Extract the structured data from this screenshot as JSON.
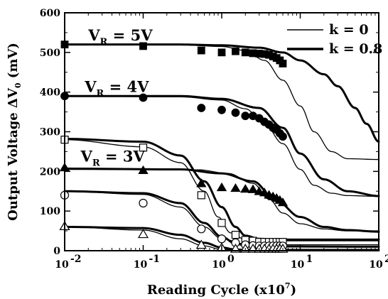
{
  "chart_data": {
    "type": "scatter",
    "title": "",
    "xlabel": "Reading Cycle (x10",
    "xlabel_sup": "7",
    "xlabel_suffix": ")",
    "ylabel": "Output Voltage ΔV",
    "ylabel_sub": "0",
    "ylabel_suffix": " (mV)",
    "xscale": "log",
    "xlim": [
      0.01,
      100
    ],
    "ylim": [
      0,
      600
    ],
    "x_ticks": [
      {
        "base": "10",
        "exp": "-2"
      },
      {
        "base": "10",
        "exp": "-1"
      },
      {
        "base": "10",
        "exp": "0"
      },
      {
        "base": "10",
        "exp": "1"
      },
      {
        "base": "10",
        "exp": "2"
      }
    ],
    "y_ticks": [
      "0",
      "100",
      "200",
      "300",
      "400",
      "500",
      "600"
    ],
    "grid": false,
    "legend": {
      "position": "top-right",
      "entries": [
        {
          "label": "k = 0",
          "line": "thin"
        },
        {
          "label": "k = 0.8",
          "line": "thick"
        }
      ]
    },
    "annotations": [
      {
        "text_main": "V",
        "text_sub": "R",
        "text_rest": " = 5V",
        "x": 0.02,
        "y": 530
      },
      {
        "text_main": "V",
        "text_sub": "R",
        "text_rest": " = 4V",
        "x": 0.018,
        "y": 400
      },
      {
        "text_main": "V",
        "text_sub": "R",
        "text_rest": " = 3V",
        "x": 0.016,
        "y": 225
      }
    ],
    "series": [
      {
        "marker": "filled-square",
        "points": [
          [
            0.01,
            520
          ],
          [
            0.1,
            516
          ],
          [
            0.55,
            505
          ],
          [
            1.0,
            500
          ],
          [
            1.5,
            503
          ],
          [
            2.0,
            500
          ],
          [
            2.5,
            498
          ],
          [
            3.0,
            497
          ],
          [
            3.5,
            496
          ],
          [
            4.0,
            494
          ],
          [
            4.5,
            490
          ],
          [
            5.0,
            486
          ],
          [
            5.5,
            480
          ],
          [
            6.0,
            472
          ]
        ]
      },
      {
        "marker": "filled-circle",
        "points": [
          [
            0.01,
            390
          ],
          [
            0.1,
            386
          ],
          [
            0.55,
            360
          ],
          [
            1.0,
            355
          ],
          [
            1.5,
            348
          ],
          [
            2.0,
            340
          ],
          [
            2.5,
            340
          ],
          [
            3.0,
            334
          ],
          [
            3.5,
            325
          ],
          [
            4.0,
            318
          ],
          [
            4.5,
            310
          ],
          [
            5.0,
            305
          ],
          [
            5.5,
            296
          ],
          [
            6.0,
            288
          ]
        ]
      },
      {
        "marker": "filled-triangle",
        "points": [
          [
            0.01,
            210
          ],
          [
            0.1,
            203
          ],
          [
            0.55,
            170
          ],
          [
            1.0,
            160
          ],
          [
            1.5,
            158
          ],
          [
            2.0,
            156
          ],
          [
            2.5,
            155
          ],
          [
            3.0,
            150
          ],
          [
            3.5,
            147
          ],
          [
            4.0,
            141
          ],
          [
            4.5,
            137
          ],
          [
            5.0,
            133
          ],
          [
            5.5,
            128
          ],
          [
            6.0,
            122
          ]
        ]
      },
      {
        "marker": "open-square",
        "points": [
          [
            0.01,
            280
          ],
          [
            0.1,
            260
          ],
          [
            0.55,
            140
          ],
          [
            1.0,
            70
          ],
          [
            1.5,
            40
          ],
          [
            2.0,
            27
          ],
          [
            2.5,
            25
          ],
          [
            3.0,
            22
          ],
          [
            3.5,
            22
          ],
          [
            4.0,
            22
          ],
          [
            4.5,
            22
          ],
          [
            5.0,
            22
          ],
          [
            5.5,
            22
          ],
          [
            6.0,
            22
          ]
        ]
      },
      {
        "marker": "open-circle",
        "points": [
          [
            0.01,
            140
          ],
          [
            0.1,
            120
          ],
          [
            0.55,
            55
          ],
          [
            1.0,
            30
          ],
          [
            1.5,
            20
          ],
          [
            2.0,
            15
          ],
          [
            2.5,
            13
          ],
          [
            3.0,
            12
          ],
          [
            3.5,
            12
          ],
          [
            4.0,
            12
          ],
          [
            4.5,
            12
          ],
          [
            5.0,
            12
          ],
          [
            5.5,
            12
          ],
          [
            6.0,
            12
          ]
        ]
      },
      {
        "marker": "open-triangle",
        "points": [
          [
            0.01,
            62
          ],
          [
            0.1,
            42
          ],
          [
            0.55,
            15
          ],
          [
            1.0,
            8
          ],
          [
            1.5,
            5
          ],
          [
            2.0,
            5
          ],
          [
            2.5,
            5
          ],
          [
            3.0,
            5
          ],
          [
            3.5,
            5
          ],
          [
            4.0,
            5
          ],
          [
            4.5,
            5
          ],
          [
            5.0,
            5
          ],
          [
            5.5,
            5
          ],
          [
            6.0,
            5
          ]
        ]
      }
    ],
    "curves": [
      {
        "k": "0",
        "weight": "thin",
        "points": [
          [
            0.01,
            520
          ],
          [
            0.3,
            519
          ],
          [
            1,
            515
          ],
          [
            2,
            505
          ],
          [
            3.5,
            480
          ],
          [
            6,
            430
          ],
          [
            10,
            365
          ],
          [
            15,
            300
          ],
          [
            25,
            250
          ],
          [
            40,
            232
          ],
          [
            100,
            230
          ]
        ]
      },
      {
        "k": "0",
        "weight": "thin",
        "points": [
          [
            0.01,
            390
          ],
          [
            0.3,
            388
          ],
          [
            1,
            380
          ],
          [
            2,
            358
          ],
          [
            3.5,
            320
          ],
          [
            6,
            270
          ],
          [
            10,
            205
          ],
          [
            15,
            165
          ],
          [
            25,
            145
          ],
          [
            40,
            139
          ],
          [
            100,
            137
          ]
        ]
      },
      {
        "k": "0",
        "weight": "thin",
        "points": [
          [
            0.01,
            205
          ],
          [
            0.5,
            204
          ],
          [
            1.2,
            195
          ],
          [
            2.5,
            170
          ],
          [
            4,
            130
          ],
          [
            6,
            95
          ],
          [
            10,
            68
          ],
          [
            20,
            55
          ],
          [
            40,
            50
          ],
          [
            100,
            50
          ]
        ]
      },
      {
        "k": "0",
        "weight": "thin",
        "points": [
          [
            0.01,
            280
          ],
          [
            0.1,
            262
          ],
          [
            0.3,
            222
          ],
          [
            0.6,
            150
          ],
          [
            0.9,
            85
          ],
          [
            1.3,
            45
          ],
          [
            2,
            28
          ],
          [
            4,
            25
          ],
          [
            100,
            25
          ]
        ]
      },
      {
        "k": "0",
        "weight": "thin",
        "points": [
          [
            0.01,
            150
          ],
          [
            0.1,
            142
          ],
          [
            0.3,
            110
          ],
          [
            0.6,
            60
          ],
          [
            1,
            30
          ],
          [
            2,
            17
          ],
          [
            4,
            15
          ],
          [
            100,
            15
          ]
        ]
      },
      {
        "k": "0",
        "weight": "thin",
        "points": [
          [
            0.01,
            60
          ],
          [
            0.1,
            52
          ],
          [
            0.3,
            30
          ],
          [
            0.6,
            12
          ],
          [
            1,
            3
          ],
          [
            2,
            0
          ],
          [
            100,
            0
          ]
        ]
      },
      {
        "k": "0.8",
        "weight": "thick",
        "points": [
          [
            0.01,
            520
          ],
          [
            0.3,
            520
          ],
          [
            1,
            518
          ],
          [
            3,
            512
          ],
          [
            6,
            500
          ],
          [
            10,
            480
          ],
          [
            20,
            445
          ],
          [
            30,
            415
          ],
          [
            50,
            360
          ],
          [
            70,
            320
          ],
          [
            100,
            275
          ]
        ]
      },
      {
        "k": "0.8",
        "weight": "thick",
        "points": [
          [
            0.01,
            390
          ],
          [
            0.3,
            390
          ],
          [
            1,
            383
          ],
          [
            3,
            360
          ],
          [
            6,
            310
          ],
          [
            10,
            245
          ],
          [
            20,
            180
          ],
          [
            40,
            150
          ],
          [
            100,
            138
          ]
        ]
      },
      {
        "k": "0.8",
        "weight": "thick",
        "points": [
          [
            0.01,
            207
          ],
          [
            0.3,
            205
          ],
          [
            1,
            195
          ],
          [
            2.5,
            175
          ],
          [
            5,
            125
          ],
          [
            10,
            85
          ],
          [
            20,
            60
          ],
          [
            40,
            52
          ],
          [
            100,
            48
          ]
        ]
      },
      {
        "k": "0.8",
        "weight": "thick",
        "points": [
          [
            0.01,
            282
          ],
          [
            0.1,
            275
          ],
          [
            0.3,
            240
          ],
          [
            0.6,
            175
          ],
          [
            1,
            110
          ],
          [
            1.5,
            60
          ],
          [
            2,
            38
          ],
          [
            3,
            30
          ],
          [
            5,
            28
          ],
          [
            100,
            28
          ]
        ]
      },
      {
        "k": "0.8",
        "weight": "thick",
        "points": [
          [
            0.01,
            150
          ],
          [
            0.1,
            145
          ],
          [
            0.3,
            120
          ],
          [
            0.6,
            70
          ],
          [
            1,
            35
          ],
          [
            1.5,
            18
          ],
          [
            2,
            13
          ],
          [
            3,
            11
          ],
          [
            100,
            10
          ]
        ]
      },
      {
        "k": "0.8",
        "weight": "thick",
        "points": [
          [
            0.01,
            60
          ],
          [
            0.1,
            57
          ],
          [
            0.3,
            40
          ],
          [
            0.6,
            20
          ],
          [
            1,
            8
          ],
          [
            1.5,
            3
          ],
          [
            2,
            2
          ],
          [
            100,
            2
          ]
        ]
      }
    ]
  }
}
